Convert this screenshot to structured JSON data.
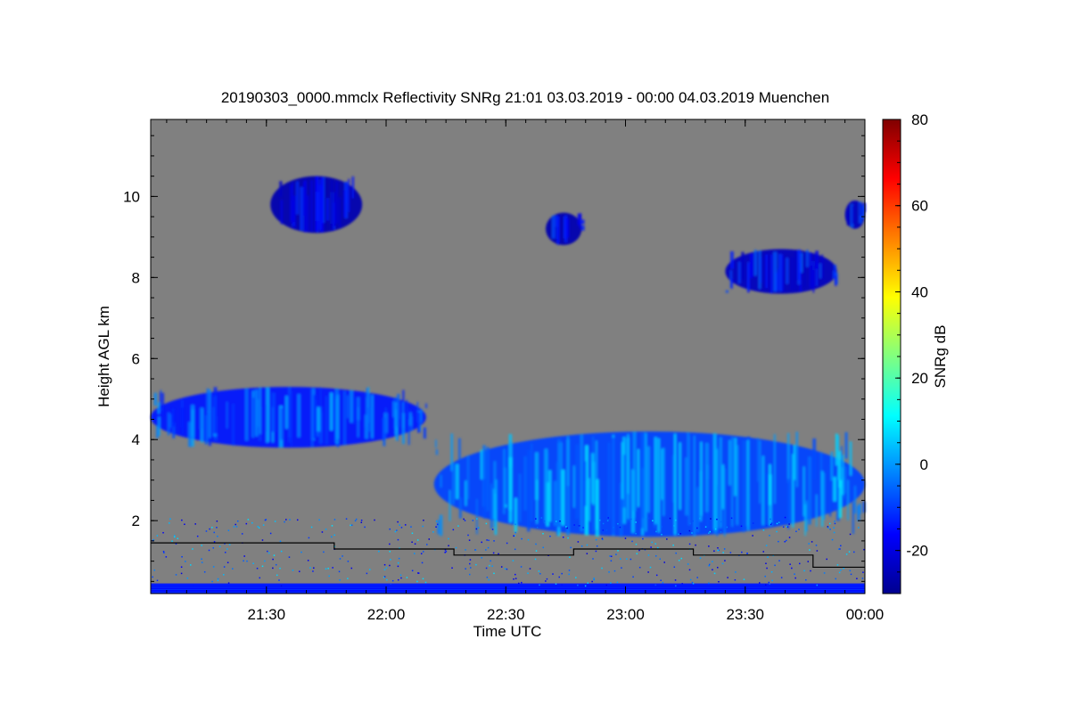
{
  "chart_data": {
    "type": "heatmap",
    "title": "20190303_0000.mmclx Reflectivity SNRg   21:01 03.03.2019 - 00:00 04.03.2019 Muenchen",
    "xlabel": "Time UTC",
    "ylabel": "Height AGL km",
    "colorbar_label": "SNRg dB",
    "x_range": [
      "21:01",
      "00:00"
    ],
    "ylim": [
      0.2,
      11.9
    ],
    "x_ticks": [
      "21:30",
      "22:00",
      "22:30",
      "23:00",
      "23:30",
      "00:00"
    ],
    "y_ticks": [
      "2",
      "4",
      "6",
      "8",
      "10"
    ],
    "colorbar_range": [
      -30,
      80
    ],
    "colorbar_ticks": [
      "-20",
      "0",
      "20",
      "40",
      "60",
      "80"
    ],
    "colors": {
      "background": "#808080",
      "colormap": [
        "#00008f",
        "#0000ff",
        "#0080ff",
        "#00ffff",
        "#80ff80",
        "#ffff00",
        "#ff8000",
        "#ff0000",
        "#800000"
      ],
      "step_line": "#000000"
    },
    "step_line_km": [
      {
        "from": "21:01",
        "to": "21:47",
        "height": 1.45
      },
      {
        "from": "21:47",
        "to": "22:17",
        "height": 1.3
      },
      {
        "from": "22:17",
        "to": "22:47",
        "height": 1.15
      },
      {
        "from": "22:47",
        "to": "23:17",
        "height": 1.3
      },
      {
        "from": "23:17",
        "to": "23:47",
        "height": 1.15
      },
      {
        "from": "23:47",
        "to": "00:00",
        "height": 0.85
      }
    ],
    "echo_regions": [
      {
        "name": "cirrus-upper-left",
        "from": "21:31",
        "to": "21:54",
        "base_km": 9.1,
        "top_km": 10.5,
        "snr_db": -20
      },
      {
        "name": "cirrus-upper-mid",
        "from": "22:40",
        "to": "22:49",
        "base_km": 8.8,
        "top_km": 9.6,
        "snr_db": -20
      },
      {
        "name": "cirrus-upper-right",
        "from": "23:55",
        "to": "00:00",
        "base_km": 9.2,
        "top_km": 9.9,
        "snr_db": -18
      },
      {
        "name": "cirrus-8km",
        "from": "23:25",
        "to": "23:53",
        "base_km": 7.6,
        "top_km": 8.7,
        "snr_db": -18
      },
      {
        "name": "mid-layer-left",
        "from": "21:01",
        "to": "22:10",
        "base_km": 3.8,
        "top_km": 5.3,
        "snr_db": -8
      },
      {
        "name": "mid-layer-right",
        "from": "22:12",
        "to": "00:00",
        "base_km": 1.6,
        "top_km": 4.2,
        "snr_db": -3
      },
      {
        "name": "near-ground-clutter",
        "from": "21:01",
        "to": "00:00",
        "base_km": 0.2,
        "top_km": 0.45,
        "snr_db": -15
      }
    ]
  }
}
